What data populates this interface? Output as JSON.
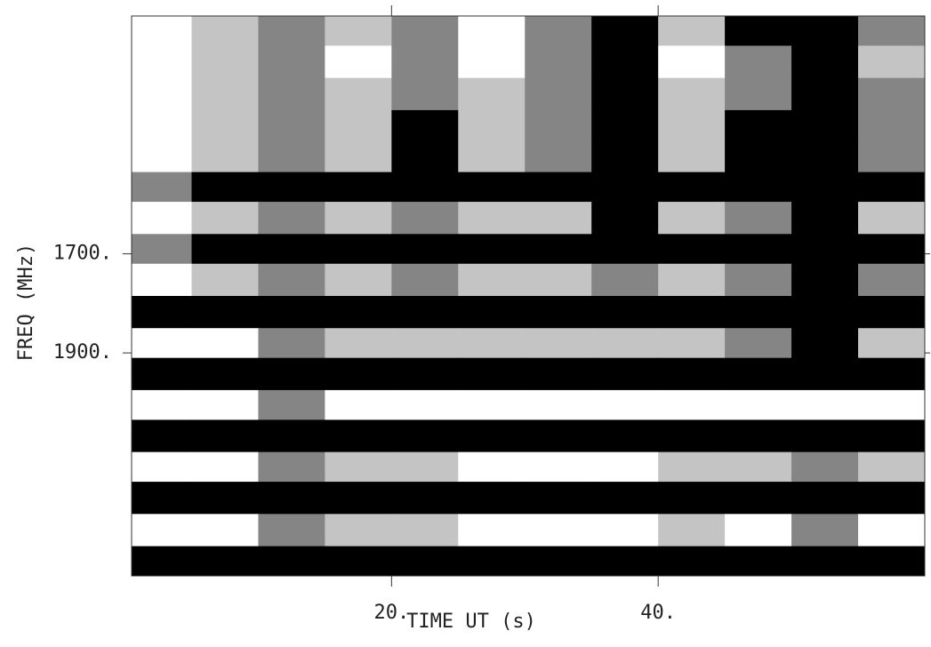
{
  "chart_data": {
    "type": "heatmap",
    "x_label": "TIME UT (s)",
    "y_label": "FREQ (MHz)",
    "xlim": [
      0.5,
      60
    ],
    "ylim": [
      1220,
      2350
    ],
    "y_inverted": true,
    "xticks": [
      {
        "value": 20,
        "label": "20."
      },
      {
        "value": 40,
        "label": "40."
      }
    ],
    "yticks": [
      {
        "value": 1700,
        "label": "1700."
      },
      {
        "value": 1900,
        "label": "1900."
      }
    ],
    "x_bins": [
      0.5,
      5,
      10,
      15,
      20,
      25,
      30,
      35,
      40,
      45,
      50,
      55,
      60
    ],
    "y_bins": [
      1220,
      1280,
      1345,
      1410,
      1470,
      1535,
      1595,
      1660,
      1720,
      1785,
      1850,
      1910,
      1975,
      2035,
      2100,
      2160,
      2225,
      2290,
      2350
    ],
    "colorscale": [
      "#ffffff",
      "#c4c4c4",
      "#858585",
      "#000000"
    ],
    "z": [
      [
        0,
        1,
        2,
        1,
        2,
        0,
        2,
        3,
        1,
        3,
        3,
        2
      ],
      [
        0,
        1,
        2,
        0,
        2,
        0,
        2,
        3,
        0,
        2,
        3,
        1
      ],
      [
        0,
        1,
        2,
        1,
        2,
        1,
        2,
        3,
        1,
        2,
        3,
        2
      ],
      [
        0,
        1,
        2,
        1,
        3,
        1,
        2,
        3,
        1,
        3,
        3,
        2
      ],
      [
        0,
        1,
        2,
        1,
        3,
        1,
        2,
        3,
        1,
        3,
        3,
        2
      ],
      [
        2,
        3,
        3,
        3,
        3,
        3,
        3,
        3,
        3,
        3,
        3,
        3
      ],
      [
        0,
        1,
        2,
        1,
        2,
        1,
        1,
        3,
        1,
        2,
        3,
        1
      ],
      [
        2,
        3,
        3,
        3,
        3,
        3,
        3,
        3,
        3,
        3,
        3,
        3
      ],
      [
        0,
        1,
        2,
        1,
        2,
        1,
        1,
        2,
        1,
        2,
        3,
        2
      ],
      [
        3,
        3,
        3,
        3,
        3,
        3,
        3,
        3,
        3,
        3,
        3,
        3
      ],
      [
        0,
        0,
        2,
        1,
        1,
        1,
        1,
        1,
        1,
        2,
        3,
        1
      ],
      [
        3,
        3,
        3,
        3,
        3,
        3,
        3,
        3,
        3,
        3,
        3,
        3
      ],
      [
        0,
        0,
        2,
        0,
        0,
        0,
        0,
        0,
        0,
        0,
        0,
        0
      ],
      [
        3,
        3,
        3,
        3,
        3,
        3,
        3,
        3,
        3,
        3,
        3,
        3
      ],
      [
        0,
        0,
        2,
        1,
        1,
        0,
        0,
        0,
        1,
        1,
        2,
        1
      ],
      [
        3,
        3,
        3,
        3,
        3,
        3,
        3,
        3,
        3,
        3,
        3,
        3
      ],
      [
        0,
        0,
        2,
        1,
        1,
        0,
        0,
        0,
        1,
        0,
        2,
        0
      ],
      [
        3,
        3,
        3,
        3,
        3,
        3,
        3,
        3,
        3,
        3,
        3,
        3
      ]
    ]
  }
}
